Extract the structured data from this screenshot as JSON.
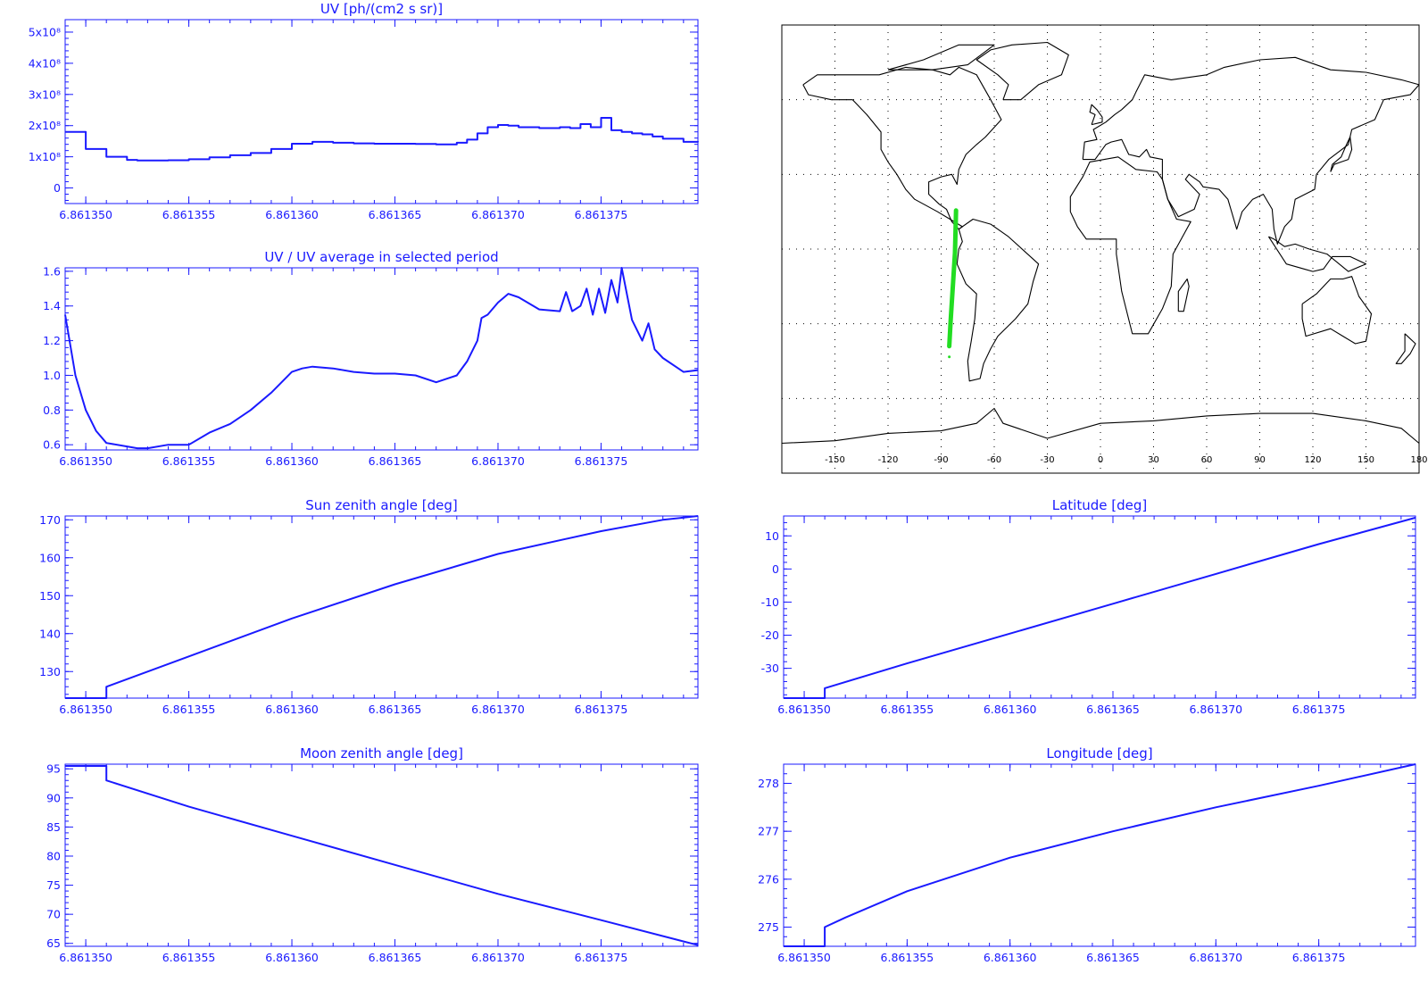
{
  "colors": {
    "axis": "#1a1aff",
    "trace": "#1a1aff",
    "map_outline": "#000000",
    "map_grid": "#000000",
    "track": "#22dd22",
    "background": "#ffffff"
  },
  "chart_data": [
    {
      "id": "uv",
      "type": "line",
      "step": true,
      "title": "UV [ph/(cm2 s sr)]",
      "xlim": [
        6.861349,
        6.8613797
      ],
      "ylim": [
        -50000000.0,
        540000000.0
      ],
      "x_ticks": [
        "6.861350",
        "6.861355",
        "6.861360",
        "6.861365",
        "6.861370",
        "6.861375"
      ],
      "x_tick_values": [
        6.86135,
        6.861355,
        6.86136,
        6.861365,
        6.86137,
        6.861375
      ],
      "y_ticks": [
        "0",
        "1x10⁸",
        "2x10⁸",
        "3x10⁸",
        "4x10⁸",
        "5x10⁸"
      ],
      "y_tick_values": [
        0,
        100000000.0,
        200000000.0,
        300000000.0,
        400000000.0,
        500000000.0
      ],
      "series": [
        {
          "x": [
            6.861349,
            6.86135,
            6.861351,
            6.861352,
            6.8613525,
            6.861353,
            6.861354,
            6.861355,
            6.861356,
            6.861357,
            6.861358,
            6.861359,
            6.86136,
            6.861361,
            6.861362,
            6.861363,
            6.861364,
            6.861365,
            6.861366,
            6.861367,
            6.861368,
            6.8613685,
            6.861369,
            6.8613695,
            6.86137,
            6.8613705,
            6.861371,
            6.861372,
            6.861373,
            6.8613735,
            6.861374,
            6.8613745,
            6.861375,
            6.8613755,
            6.861376,
            6.8613765,
            6.861377,
            6.8613775,
            6.861378,
            6.861379,
            6.8613797
          ],
          "y": [
            180000000.0,
            125000000.0,
            100000000.0,
            90000000.0,
            88000000.0,
            88000000.0,
            89000000.0,
            92000000.0,
            98000000.0,
            105000000.0,
            112000000.0,
            125000000.0,
            142000000.0,
            148000000.0,
            145000000.0,
            143000000.0,
            142000000.0,
            142000000.0,
            141000000.0,
            140000000.0,
            145000000.0,
            155000000.0,
            175000000.0,
            195000000.0,
            202000000.0,
            200000000.0,
            195000000.0,
            192000000.0,
            195000000.0,
            192000000.0,
            205000000.0,
            195000000.0,
            225000000.0,
            185000000.0,
            180000000.0,
            175000000.0,
            172000000.0,
            165000000.0,
            158000000.0,
            148000000.0,
            147000000.0
          ]
        }
      ]
    },
    {
      "id": "uv-ratio",
      "type": "line",
      "title": "UV / UV average in selected period",
      "xlim": [
        6.861349,
        6.8613797
      ],
      "ylim": [
        0.57,
        1.62
      ],
      "x_ticks": [
        "6.861350",
        "6.861355",
        "6.861360",
        "6.861365",
        "6.861370",
        "6.861375"
      ],
      "x_tick_values": [
        6.86135,
        6.861355,
        6.86136,
        6.861365,
        6.86137,
        6.861375
      ],
      "y_ticks": [
        "0.6",
        "0.8",
        "1.0",
        "1.2",
        "1.4",
        "1.6"
      ],
      "y_tick_values": [
        0.6,
        0.8,
        1.0,
        1.2,
        1.4,
        1.6
      ],
      "series": [
        {
          "x": [
            6.861349,
            6.8613495,
            6.86135,
            6.8613505,
            6.861351,
            6.861352,
            6.8613525,
            6.861353,
            6.861354,
            6.861355,
            6.861356,
            6.861357,
            6.861358,
            6.861359,
            6.86136,
            6.8613605,
            6.861361,
            6.861362,
            6.861363,
            6.861364,
            6.861365,
            6.861366,
            6.861367,
            6.861368,
            6.8613685,
            6.861369,
            6.8613692,
            6.8613695,
            6.86137,
            6.8613705,
            6.861371,
            6.861372,
            6.861373,
            6.8613733,
            6.8613736,
            6.861374,
            6.8613743,
            6.8613746,
            6.8613749,
            6.8613752,
            6.8613755,
            6.8613758,
            6.861376,
            6.8613765,
            6.861377,
            6.8613773,
            6.8613776,
            6.861378,
            6.861379,
            6.8613797
          ],
          "y": [
            1.35,
            1.0,
            0.8,
            0.68,
            0.61,
            0.59,
            0.58,
            0.58,
            0.6,
            0.6,
            0.67,
            0.72,
            0.8,
            0.9,
            1.02,
            1.04,
            1.05,
            1.04,
            1.02,
            1.01,
            1.01,
            1.0,
            0.96,
            1.0,
            1.08,
            1.2,
            1.33,
            1.35,
            1.42,
            1.47,
            1.45,
            1.38,
            1.37,
            1.48,
            1.37,
            1.4,
            1.5,
            1.35,
            1.5,
            1.36,
            1.55,
            1.42,
            1.62,
            1.32,
            1.2,
            1.3,
            1.15,
            1.1,
            1.02,
            1.03
          ]
        }
      ]
    },
    {
      "id": "sun-zenith",
      "type": "line",
      "title": "Sun zenith angle [deg]",
      "xlim": [
        6.861349,
        6.8613797
      ],
      "ylim": [
        123,
        171
      ],
      "x_ticks": [
        "6.861350",
        "6.861355",
        "6.861360",
        "6.861365",
        "6.861370",
        "6.861375"
      ],
      "x_tick_values": [
        6.86135,
        6.861355,
        6.86136,
        6.861365,
        6.86137,
        6.861375
      ],
      "y_ticks": [
        "130",
        "140",
        "150",
        "160",
        "170"
      ],
      "y_tick_values": [
        130,
        140,
        150,
        160,
        170
      ],
      "series": [
        {
          "x": [
            6.861349,
            6.861351,
            6.861351,
            6.861355,
            6.86136,
            6.861365,
            6.86137,
            6.861375,
            6.861378,
            6.8613797
          ],
          "y": [
            123,
            123,
            126,
            134,
            144,
            153,
            161,
            167,
            170,
            171
          ]
        }
      ]
    },
    {
      "id": "moon-zenith",
      "type": "line",
      "title": "Moon zenith angle [deg]",
      "xlim": [
        6.861349,
        6.8613797
      ],
      "ylim": [
        64.5,
        95.8
      ],
      "x_ticks": [
        "6.861350",
        "6.861355",
        "6.861360",
        "6.861365",
        "6.861370",
        "6.861375"
      ],
      "x_tick_values": [
        6.86135,
        6.861355,
        6.86136,
        6.861365,
        6.86137,
        6.861375
      ],
      "y_ticks": [
        "65",
        "70",
        "75",
        "80",
        "85",
        "90",
        "95"
      ],
      "y_tick_values": [
        65,
        70,
        75,
        80,
        85,
        90,
        95
      ],
      "series": [
        {
          "x": [
            6.861349,
            6.861351,
            6.861351,
            6.861355,
            6.86136,
            6.861365,
            6.86137,
            6.861375,
            6.8613797
          ],
          "y": [
            95.5,
            95.5,
            93.0,
            88.5,
            83.5,
            78.5,
            73.5,
            69.0,
            64.7
          ]
        }
      ]
    },
    {
      "id": "latitude",
      "type": "line",
      "title": "Latitude [deg]",
      "xlim": [
        6.861349,
        6.8613797
      ],
      "ylim": [
        -39,
        16
      ],
      "x_ticks": [
        "6.861350",
        "6.861355",
        "6.861360",
        "6.861365",
        "6.861370",
        "6.861375"
      ],
      "x_tick_values": [
        6.86135,
        6.861355,
        6.86136,
        6.861365,
        6.86137,
        6.861375
      ],
      "y_ticks": [
        "-30",
        "-20",
        "-10",
        "0",
        "10"
      ],
      "y_tick_values": [
        -30,
        -20,
        -10,
        0,
        10
      ],
      "series": [
        {
          "x": [
            6.861349,
            6.861351,
            6.861351,
            6.861355,
            6.86136,
            6.861365,
            6.86137,
            6.861375,
            6.8613797
          ],
          "y": [
            -39,
            -39,
            -36,
            -28.5,
            -19.5,
            -10.5,
            -1.5,
            7.5,
            15.5
          ]
        }
      ]
    },
    {
      "id": "longitude",
      "type": "line",
      "title": "Longitude [deg]",
      "xlim": [
        6.861349,
        6.8613797
      ],
      "ylim": [
        274.6,
        278.4
      ],
      "x_ticks": [
        "6.861350",
        "6.861355",
        "6.861360",
        "6.861365",
        "6.861370",
        "6.861375"
      ],
      "x_tick_values": [
        6.86135,
        6.861355,
        6.86136,
        6.861365,
        6.86137,
        6.861375
      ],
      "y_ticks": [
        "275",
        "276",
        "277",
        "278"
      ],
      "y_tick_values": [
        275,
        276,
        277,
        278
      ],
      "series": [
        {
          "x": [
            6.861349,
            6.861351,
            6.861351,
            6.861352,
            6.861355,
            6.86136,
            6.861365,
            6.86137,
            6.861375,
            6.8613797
          ],
          "y": [
            274.6,
            274.6,
            275.0,
            275.2,
            275.75,
            276.45,
            277.0,
            277.5,
            277.95,
            278.4
          ]
        }
      ]
    },
    {
      "id": "ground-track-map",
      "type": "scatter",
      "title": "",
      "xlim": [
        -180,
        180
      ],
      "ylim": [
        -90,
        90
      ],
      "x_ticks": [
        "-150",
        "-120",
        "-90",
        "-60",
        "-30",
        "0",
        "30",
        "60",
        "90",
        "120",
        "150",
        "180"
      ],
      "x_tick_values": [
        -150,
        -120,
        -90,
        -60,
        -30,
        0,
        30,
        60,
        90,
        120,
        150,
        180
      ],
      "grid": true,
      "series": [
        {
          "x": [
            -85.4,
            -84.6,
            -83.8,
            -83.0,
            -82.2,
            -81.6
          ],
          "y": [
            -39,
            -28.5,
            -19.5,
            -10.5,
            -1.5,
            15.5
          ]
        }
      ]
    }
  ]
}
